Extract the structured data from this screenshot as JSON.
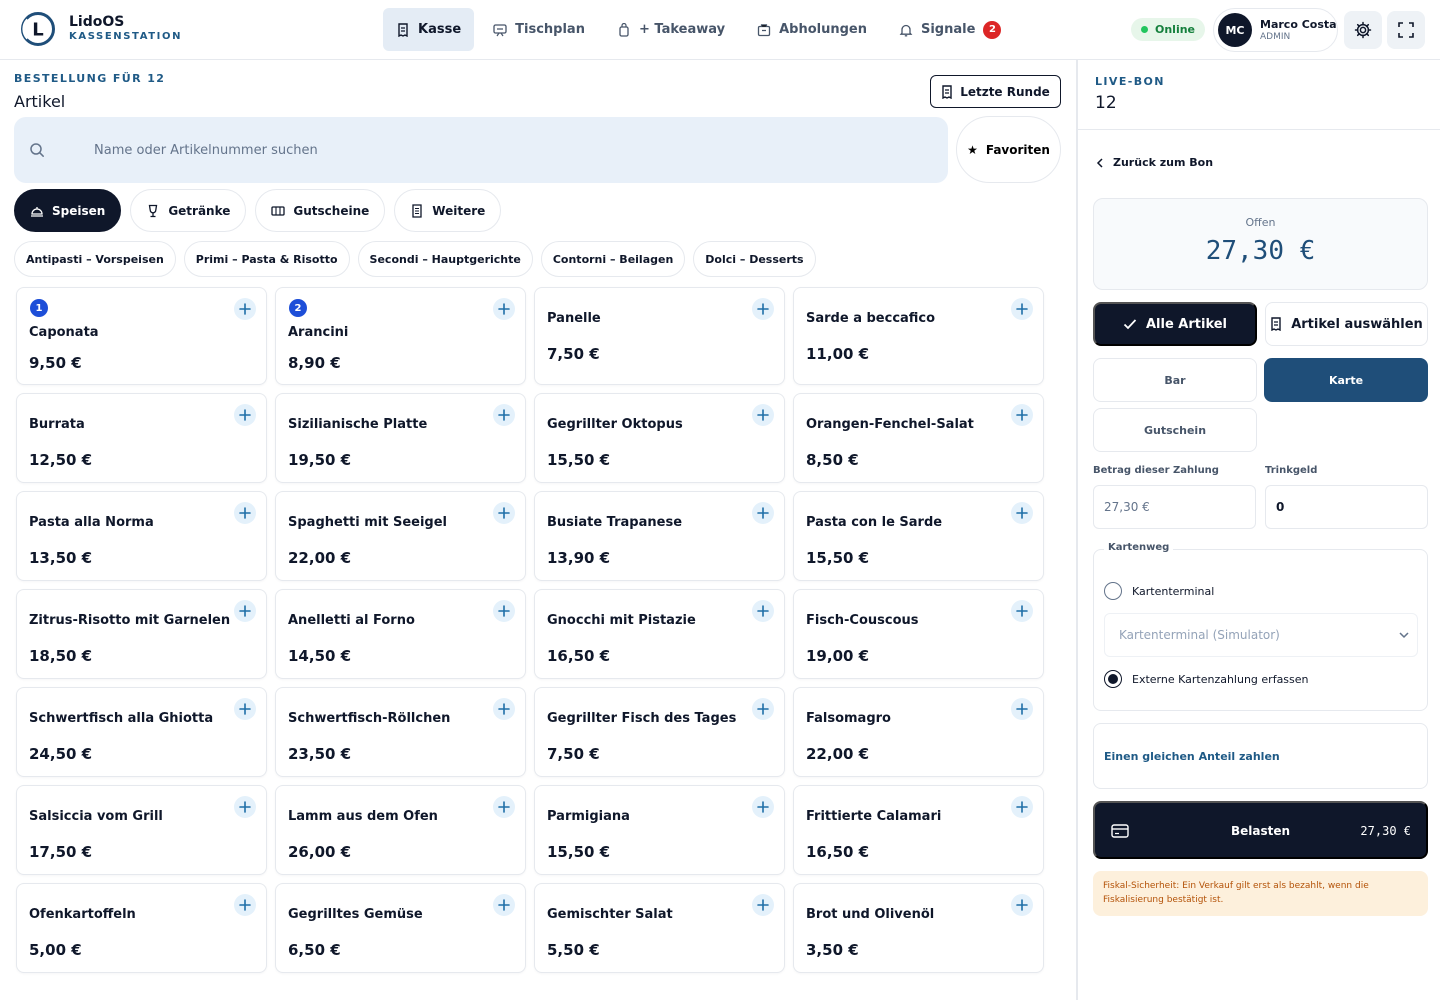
{
  "app": {
    "name": "LidoOS",
    "subtitle": "KASSENSTATION",
    "logo_letter": "L"
  },
  "nav": [
    {
      "label": "Kasse",
      "icon": "receipt-icon",
      "active": true
    },
    {
      "label": "Tischplan",
      "icon": "table-plan-icon",
      "active": false
    },
    {
      "label": "+ Takeaway",
      "icon": "takeaway-bag-icon",
      "active": false
    },
    {
      "label": "Abholungen",
      "icon": "pickup-box-icon",
      "active": false
    },
    {
      "label": "Signale",
      "icon": "bell-icon",
      "active": false,
      "badge": "2"
    }
  ],
  "status": {
    "label": "Online",
    "color": "#22c55e"
  },
  "user": {
    "initials": "MC",
    "name": "Marco Costa",
    "role": "ADMIN"
  },
  "order": {
    "kicker": "BESTELLUNG FÜR 12",
    "title": "Artikel",
    "last_round_label": "Letzte Runde",
    "search_placeholder": "Name oder Artikelnummer suchen",
    "favorites_label": "Favoriten"
  },
  "categories": [
    {
      "label": "Speisen",
      "icon": "cloche-icon",
      "active": true
    },
    {
      "label": "Getränke",
      "icon": "glass-icon",
      "active": false
    },
    {
      "label": "Gutscheine",
      "icon": "ticket-icon",
      "active": false
    },
    {
      "label": "Weitere",
      "icon": "list-icon",
      "active": false
    }
  ],
  "subcategories": [
    "Antipasti – Vorspeisen",
    "Primi – Pasta & Risotto",
    "Secondi – Hauptgerichte",
    "Contorni – Beilagen",
    "Dolci – Desserts"
  ],
  "products": [
    {
      "name": "Caponata",
      "price": "9,50 €",
      "count": "1"
    },
    {
      "name": "Arancini",
      "price": "8,90 €",
      "count": "2"
    },
    {
      "name": "Panelle",
      "price": "7,50 €"
    },
    {
      "name": "Sarde a beccafico",
      "price": "11,00 €"
    },
    {
      "name": "Burrata",
      "price": "12,50 €"
    },
    {
      "name": "Sizilianische Platte",
      "price": "19,50 €"
    },
    {
      "name": "Gegrillter Oktopus",
      "price": "15,50 €"
    },
    {
      "name": "Orangen-Fenchel-Salat",
      "price": "8,50 €"
    },
    {
      "name": "Pasta alla Norma",
      "price": "13,50 €"
    },
    {
      "name": "Spaghetti mit Seeigel",
      "price": "22,00 €"
    },
    {
      "name": "Busiate Trapanese",
      "price": "13,90 €"
    },
    {
      "name": "Pasta con le Sarde",
      "price": "15,50 €"
    },
    {
      "name": "Zitrus-Risotto mit Garnelen",
      "price": "18,50 €"
    },
    {
      "name": "Anelletti al Forno",
      "price": "14,50 €"
    },
    {
      "name": "Gnocchi mit Pistazie",
      "price": "16,50 €"
    },
    {
      "name": "Fisch-Couscous",
      "price": "19,00 €"
    },
    {
      "name": "Schwertfisch alla Ghiotta",
      "price": "24,50 €"
    },
    {
      "name": "Schwertfisch-Röllchen",
      "price": "23,50 €"
    },
    {
      "name": "Gegrillter Fisch des Tages",
      "price": "7,50 €"
    },
    {
      "name": "Falsomagro",
      "price": "22,00 €"
    },
    {
      "name": "Salsiccia vom Grill",
      "price": "17,50 €"
    },
    {
      "name": "Lamm aus dem Ofen",
      "price": "26,00 €"
    },
    {
      "name": "Parmigiana",
      "price": "15,50 €"
    },
    {
      "name": "Frittierte Calamari",
      "price": "16,50 €"
    },
    {
      "name": "Ofenkartoffeln",
      "price": "5,00 €"
    },
    {
      "name": "Gegrilltes Gemüse",
      "price": "6,50 €"
    },
    {
      "name": "Gemischter Salat",
      "price": "5,50 €"
    },
    {
      "name": "Brot und Olivenöl",
      "price": "3,50 €"
    }
  ],
  "bon": {
    "kicker": "LIVE-BON",
    "title": "12",
    "back_label": "Zurück zum Bon",
    "open_label": "Offen",
    "open_amount": "27,30 €",
    "all_items_label": "Alle Artikel",
    "select_items_label": "Artikel auswählen",
    "payment_methods": [
      "Bar",
      "Karte",
      "Gutschein"
    ],
    "payment_selected": "Karte",
    "amount_label": "Betrag dieser Zahlung",
    "amount_value": "27,30 €",
    "tip_label": "Trinkgeld",
    "tip_value": "0",
    "card_route_label": "Kartenweg",
    "terminal_label": "Kartenterminal",
    "terminal_select": "Kartenterminal (Simulator)",
    "external_label": "Externe Kartenzahlung erfassen",
    "selected_route": "external",
    "split_label": "Einen gleichen Anteil zahlen",
    "charge_label": "Belasten",
    "charge_amount": "27,30 €",
    "notice": "Fiskal-Sicherheit: Ein Verkauf gilt erst als bezahlt, wenn die Fiskalisierung bestätigt ist."
  },
  "colors": {
    "primary_dark": "#0f172a",
    "accent_blue": "#1f4e79",
    "kicker_blue": "#1f5a86",
    "badge_red": "#dc2626",
    "notice_bg": "#fdf0dc"
  }
}
